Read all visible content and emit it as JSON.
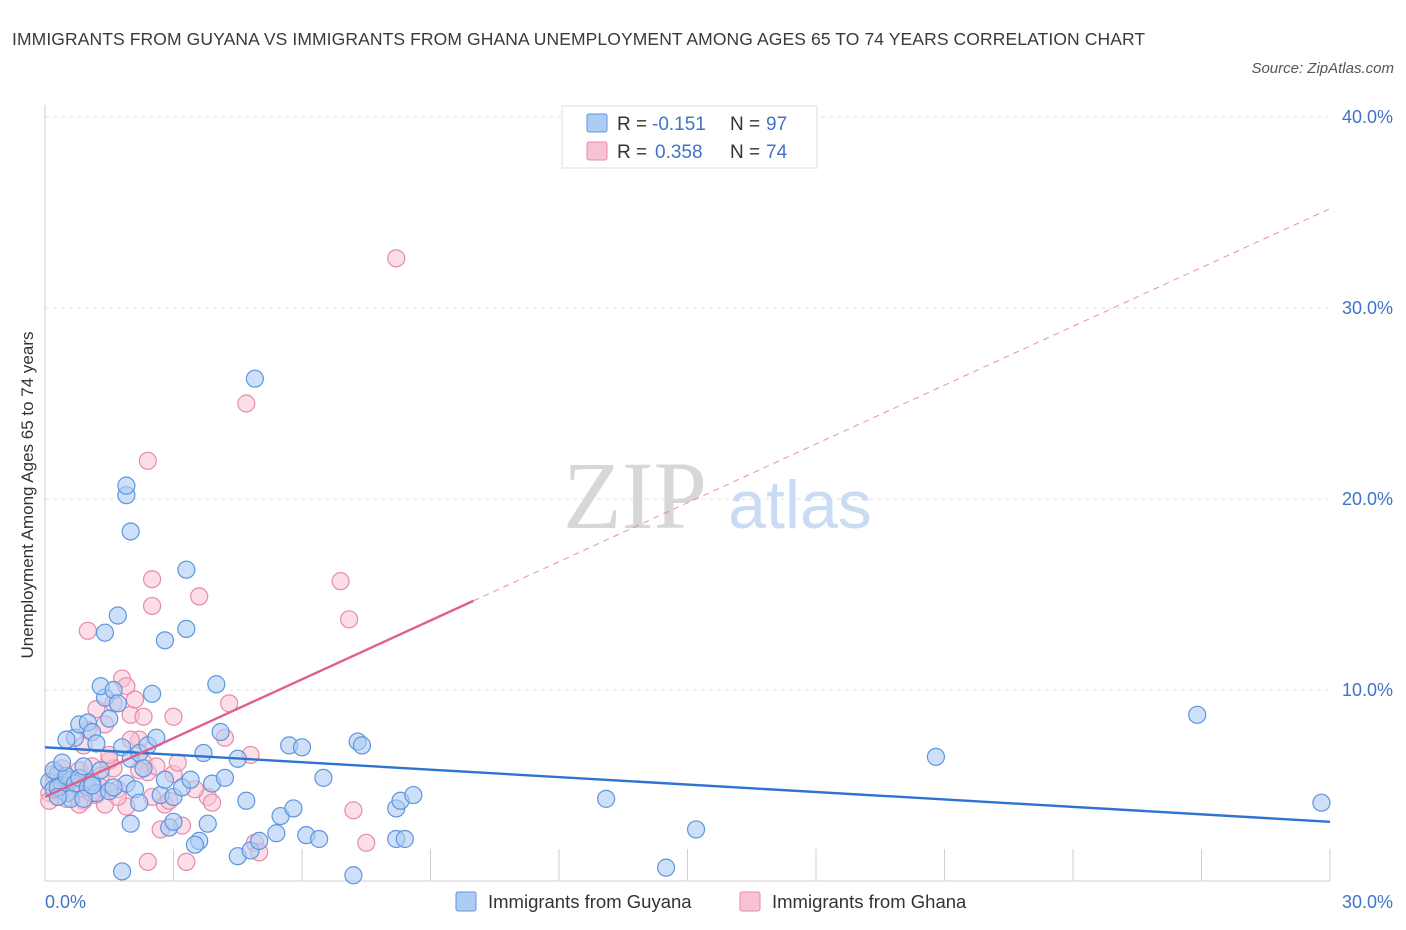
{
  "header": {
    "title": "IMMIGRANTS FROM GUYANA VS IMMIGRANTS FROM GHANA UNEMPLOYMENT AMONG AGES 65 TO 74 YEARS CORRELATION CHART",
    "source": "Source: ZipAtlas.com"
  },
  "watermark": {
    "zip": "ZIP",
    "atlas": "atlas"
  },
  "colors": {
    "guyana_fill": "#aecbf4",
    "guyana_stroke": "#5d95e0",
    "guyana_line": "#2e72d2",
    "ghana_fill": "#f7c3d3",
    "ghana_stroke": "#e98aa8",
    "ghana_line": "#e0608a",
    "grid": "#e2e2e2",
    "axis_text": "#3f74c8"
  },
  "stats_legend": {
    "rows": [
      {
        "r_label": "R =",
        "r_value": "-0.151",
        "n_label": "N =",
        "n_value": "97"
      },
      {
        "r_label": "R =",
        "r_value": "0.358",
        "n_label": "N =",
        "n_value": "74"
      }
    ]
  },
  "bottom_legend": {
    "items": [
      "Immigrants from Guyana",
      "Immigrants from Ghana"
    ]
  },
  "chart_data": {
    "type": "scatter",
    "title": "IMMIGRANTS FROM GUYANA VS IMMIGRANTS FROM GHANA UNEMPLOYMENT AMONG AGES 65 TO 74 YEARS CORRELATION CHART",
    "xlabel": "",
    "ylabel": "Unemployment Among Ages 65 to 74 years",
    "xlim": [
      0,
      30
    ],
    "ylim": [
      0,
      40
    ],
    "x_tick_labels": [
      "0.0%",
      "30.0%"
    ],
    "y_ticks": [
      10,
      20,
      30,
      40
    ],
    "y_tick_labels": [
      "10.0%",
      "20.0%",
      "30.0%",
      "40.0%"
    ],
    "grid": true,
    "series": [
      {
        "name": "Immigrants from Guyana",
        "R": -0.151,
        "N": 97,
        "trend": {
          "x": [
            0,
            30
          ],
          "y": [
            7.0,
            3.1
          ],
          "dashed_from": null
        },
        "points": [
          [
            0.1,
            5.2
          ],
          [
            0.2,
            4.8
          ],
          [
            0.3,
            5.6
          ],
          [
            0.4,
            5.0
          ],
          [
            0.5,
            4.6
          ],
          [
            0.6,
            5.3
          ],
          [
            0.2,
            5.8
          ],
          [
            0.3,
            4.9
          ],
          [
            0.5,
            5.5
          ],
          [
            0.7,
            5.1
          ],
          [
            0.4,
            6.2
          ],
          [
            0.6,
            4.3
          ],
          [
            0.8,
            5.4
          ],
          [
            1.0,
            4.9
          ],
          [
            0.9,
            6.0
          ],
          [
            0.7,
            7.5
          ],
          [
            1.1,
            5.2
          ],
          [
            1.2,
            4.6
          ],
          [
            1.3,
            5.8
          ],
          [
            1.5,
            4.7
          ],
          [
            0.8,
            8.2
          ],
          [
            1.0,
            8.3
          ],
          [
            1.1,
            7.8
          ],
          [
            1.2,
            7.2
          ],
          [
            1.4,
            9.6
          ],
          [
            1.3,
            10.2
          ],
          [
            1.6,
            10.0
          ],
          [
            1.7,
            9.3
          ],
          [
            1.8,
            7.0
          ],
          [
            2.0,
            6.4
          ],
          [
            1.5,
            8.5
          ],
          [
            1.9,
            5.1
          ],
          [
            2.1,
            4.8
          ],
          [
            2.2,
            6.7
          ],
          [
            2.4,
            7.1
          ],
          [
            2.5,
            9.8
          ],
          [
            2.6,
            7.5
          ],
          [
            2.3,
            5.9
          ],
          [
            2.7,
            4.5
          ],
          [
            2.8,
            5.3
          ],
          [
            1.4,
            13.0
          ],
          [
            1.7,
            13.9
          ],
          [
            2.0,
            18.3
          ],
          [
            1.9,
            20.2
          ],
          [
            1.9,
            20.7
          ],
          [
            3.3,
            16.3
          ],
          [
            4.9,
            26.3
          ],
          [
            2.8,
            12.6
          ],
          [
            3.3,
            13.2
          ],
          [
            4.0,
            10.3
          ],
          [
            3.0,
            4.4
          ],
          [
            3.2,
            4.9
          ],
          [
            3.4,
            5.3
          ],
          [
            3.7,
            6.7
          ],
          [
            3.9,
            5.1
          ],
          [
            4.1,
            7.8
          ],
          [
            4.2,
            5.4
          ],
          [
            4.5,
            6.4
          ],
          [
            4.7,
            4.2
          ],
          [
            3.6,
            2.1
          ],
          [
            3.8,
            3.0
          ],
          [
            2.9,
            2.8
          ],
          [
            2.0,
            3.0
          ],
          [
            1.8,
            0.5
          ],
          [
            4.5,
            1.3
          ],
          [
            4.8,
            1.6
          ],
          [
            5.0,
            2.1
          ],
          [
            5.4,
            2.5
          ],
          [
            5.5,
            3.4
          ],
          [
            5.8,
            3.8
          ],
          [
            5.7,
            7.1
          ],
          [
            6.0,
            7.0
          ],
          [
            6.5,
            5.4
          ],
          [
            6.1,
            2.4
          ],
          [
            6.4,
            2.2
          ],
          [
            7.3,
            7.3
          ],
          [
            7.4,
            7.1
          ],
          [
            8.2,
            3.8
          ],
          [
            8.3,
            4.2
          ],
          [
            8.6,
            4.5
          ],
          [
            8.2,
            2.2
          ],
          [
            7.2,
            0.3
          ],
          [
            8.4,
            2.2
          ],
          [
            13.1,
            4.3
          ],
          [
            14.5,
            0.7
          ],
          [
            15.2,
            2.7
          ],
          [
            20.8,
            6.5
          ],
          [
            26.9,
            8.7
          ],
          [
            29.8,
            4.1
          ],
          [
            3.5,
            1.9
          ],
          [
            0.3,
            4.4
          ],
          [
            0.9,
            4.3
          ],
          [
            1.6,
            4.9
          ],
          [
            2.2,
            4.1
          ],
          [
            0.5,
            7.4
          ],
          [
            1.1,
            5.0
          ],
          [
            3.0,
            3.1
          ]
        ]
      },
      {
        "name": "Immigrants from Ghana",
        "R": 0.358,
        "N": 74,
        "trend": {
          "x": [
            0,
            30
          ],
          "y": [
            4.4,
            35.2
          ],
          "dashed_from": 10.0
        },
        "points": [
          [
            0.1,
            4.6
          ],
          [
            0.2,
            5.1
          ],
          [
            0.3,
            4.8
          ],
          [
            0.4,
            5.4
          ],
          [
            0.5,
            4.3
          ],
          [
            0.6,
            5.0
          ],
          [
            0.2,
            5.6
          ],
          [
            0.3,
            4.4
          ],
          [
            0.5,
            5.2
          ],
          [
            0.7,
            4.7
          ],
          [
            0.8,
            5.8
          ],
          [
            0.9,
            4.2
          ],
          [
            1.0,
            5.1
          ],
          [
            1.1,
            6.0
          ],
          [
            1.2,
            4.5
          ],
          [
            1.3,
            5.5
          ],
          [
            1.4,
            4.0
          ],
          [
            1.5,
            6.3
          ],
          [
            1.6,
            5.9
          ],
          [
            1.7,
            4.8
          ],
          [
            0.9,
            7.1
          ],
          [
            1.0,
            7.9
          ],
          [
            1.2,
            9.0
          ],
          [
            1.4,
            8.2
          ],
          [
            1.6,
            9.3
          ],
          [
            1.8,
            10.6
          ],
          [
            1.9,
            10.2
          ],
          [
            2.0,
            8.7
          ],
          [
            2.1,
            9.5
          ],
          [
            2.2,
            7.4
          ],
          [
            2.3,
            6.2
          ],
          [
            2.4,
            5.7
          ],
          [
            2.5,
            4.4
          ],
          [
            2.6,
            6.0
          ],
          [
            2.8,
            4.0
          ],
          [
            3.0,
            5.6
          ],
          [
            3.1,
            6.2
          ],
          [
            2.7,
            2.7
          ],
          [
            3.2,
            2.9
          ],
          [
            3.3,
            1.0
          ],
          [
            2.4,
            22.0
          ],
          [
            2.5,
            15.8
          ],
          [
            2.5,
            14.4
          ],
          [
            3.6,
            14.9
          ],
          [
            4.7,
            25.0
          ],
          [
            1.0,
            13.1
          ],
          [
            3.0,
            8.6
          ],
          [
            4.2,
            7.5
          ],
          [
            4.3,
            9.3
          ],
          [
            4.8,
            6.6
          ],
          [
            6.9,
            15.7
          ],
          [
            7.1,
            13.7
          ],
          [
            8.2,
            32.6
          ],
          [
            7.2,
            3.7
          ],
          [
            7.5,
            2.0
          ],
          [
            4.9,
            2.0
          ],
          [
            5.0,
            1.5
          ],
          [
            2.4,
            1.0
          ],
          [
            3.8,
            4.4
          ],
          [
            1.9,
            3.9
          ],
          [
            0.4,
            5.9
          ],
          [
            0.6,
            5.3
          ],
          [
            1.3,
            4.9
          ],
          [
            0.1,
            4.2
          ],
          [
            2.9,
            4.2
          ],
          [
            1.1,
            4.6
          ],
          [
            2.2,
            5.8
          ],
          [
            3.5,
            4.8
          ],
          [
            1.7,
            4.4
          ],
          [
            0.8,
            4.0
          ],
          [
            2.3,
            8.6
          ],
          [
            1.5,
            6.6
          ],
          [
            2.0,
            7.4
          ],
          [
            3.9,
            4.1
          ]
        ]
      }
    ]
  }
}
